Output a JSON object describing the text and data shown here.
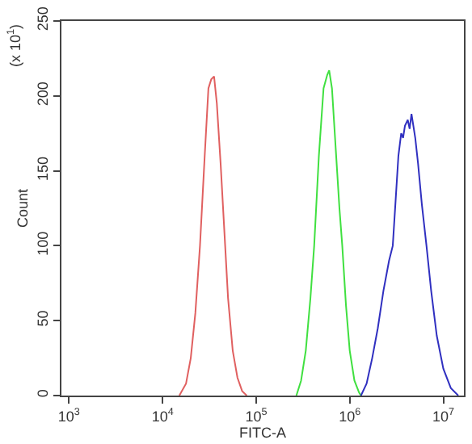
{
  "chart_data": {
    "type": "line",
    "xlabel": "FITC-A",
    "ylabel": "Count",
    "annotations": [
      "(x 10$^{1}$)"
    ],
    "log": "x",
    "grid": false,
    "marker": "none",
    "line_style": "solid",
    "xlim": [
      830,
      16600000
    ],
    "xticks": [
      {
        "value": 1000,
        "label": "10$^{3}$"
      },
      {
        "value": 10000,
        "label": "10$^{4}$"
      },
      {
        "value": 100000,
        "label": "10$^{5}$"
      },
      {
        "value": 1000000,
        "label": "10$^{6}$"
      },
      {
        "value": 10000000,
        "label": "10$^{7}$"
      }
    ],
    "ylim": [
      0,
      250
    ],
    "yticks": [
      0,
      50,
      100,
      150,
      200,
      250
    ],
    "series": [
      {
        "color": "#e06060",
        "x": [
          15100,
          17800,
          20000,
          22400,
          25100,
          28200,
          30900,
          33100,
          35500,
          38000,
          41700,
          45700,
          50100,
          56200,
          63100,
          70800,
          79400
        ],
        "values": [
          0,
          8,
          25,
          55,
          100,
          160,
          205,
          211,
          213,
          195,
          155,
          110,
          65,
          30,
          12,
          3,
          0
        ]
      },
      {
        "color": "#40e040",
        "x": [
          269000,
          302000,
          339000,
          380000,
          417000,
          468000,
          525000,
          575000,
          603000,
          646000,
          708000,
          776000,
          832000,
          912000,
          1000000,
          1122000,
          1259000,
          1318000
        ],
        "values": [
          0,
          10,
          30,
          65,
          100,
          160,
          205,
          214,
          217,
          205,
          165,
          125,
          100,
          60,
          30,
          10,
          2,
          0
        ]
      },
      {
        "color": "#3030c0",
        "x": [
          1318000,
          1514000,
          1738000,
          1995000,
          2291000,
          2630000,
          2884000,
          3090000,
          3311000,
          3548000,
          3715000,
          3890000,
          4169000,
          4365000,
          4571000,
          4786000,
          5012000,
          5370000,
          5888000,
          6607000,
          7413000,
          8511000,
          10000000,
          12020000,
          14450000
        ],
        "values": [
          0,
          8,
          25,
          45,
          70,
          90,
          100,
          130,
          160,
          175,
          172,
          180,
          184,
          178,
          188,
          180,
          172,
          155,
          128,
          100,
          70,
          40,
          18,
          5,
          0
        ]
      }
    ]
  }
}
